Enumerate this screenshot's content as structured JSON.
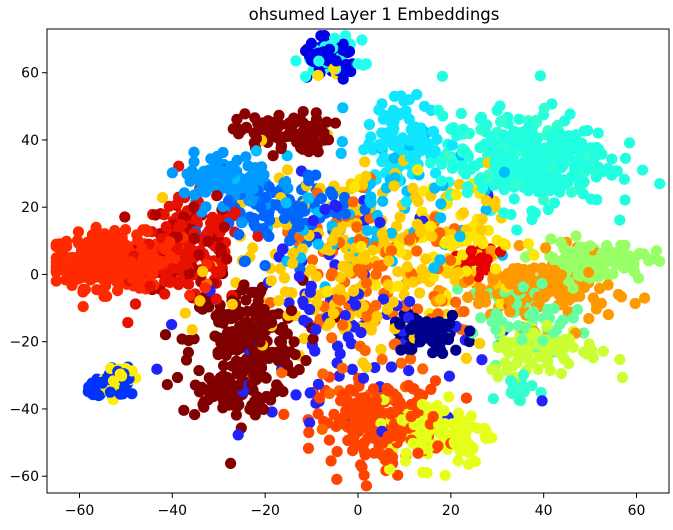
{
  "chart_data": {
    "type": "scatter",
    "title": "ohsumed Layer 1 Embeddings",
    "xlabel": "",
    "ylabel": "",
    "xlim": [
      -67,
      67
    ],
    "ylim": [
      -65,
      73
    ],
    "xticks": [
      -60,
      -40,
      -20,
      0,
      20,
      40,
      60
    ],
    "yticks": [
      -60,
      -40,
      -20,
      0,
      20,
      40,
      60
    ],
    "xtick_labels": [
      "−60",
      "−40",
      "−20",
      "0",
      "20",
      "40",
      "60"
    ],
    "ytick_labels": [
      "−60",
      "−40",
      "−20",
      "0",
      "20",
      "40",
      "60"
    ],
    "grid": false,
    "legend": "none",
    "colormap": "jet",
    "clusters": [
      {
        "color": "#ff2a00",
        "cx": -52,
        "cy": 4,
        "sx": 7,
        "sy": 4,
        "n": 320
      },
      {
        "color": "#e61100",
        "cx": -36,
        "cy": 6,
        "sx": 6,
        "sy": 8,
        "n": 140
      },
      {
        "color": "#b00000",
        "cx": -36,
        "cy": 10,
        "sx": 5,
        "sy": 7,
        "n": 60
      },
      {
        "color": "#800000",
        "cx": -24,
        "cy": -20,
        "sx": 6,
        "sy": 9,
        "n": 190
      },
      {
        "color": "#800000",
        "cx": -28,
        "cy": -36,
        "sx": 5,
        "sy": 3,
        "n": 60
      },
      {
        "color": "#880000",
        "cx": -16,
        "cy": 42,
        "sx": 5,
        "sy": 3,
        "n": 90
      },
      {
        "color": "#ff4400",
        "cx": 5,
        "cy": -44,
        "sx": 7,
        "sy": 6,
        "n": 200
      },
      {
        "color": "#ff6600",
        "cx": 5,
        "cy": -5,
        "sx": 10,
        "sy": 14,
        "n": 120
      },
      {
        "color": "#ff9900",
        "cx": 38,
        "cy": -5,
        "sx": 8,
        "sy": 5,
        "n": 170
      },
      {
        "color": "#ffcc00",
        "cx": 0,
        "cy": 5,
        "sx": 14,
        "sy": 14,
        "n": 220
      },
      {
        "color": "#ffe600",
        "cx": 20,
        "cy": 10,
        "sx": 8,
        "sy": 10,
        "n": 70
      },
      {
        "color": "#e6ff1a",
        "cx": 17,
        "cy": -47,
        "sx": 6,
        "sy": 5,
        "n": 130
      },
      {
        "color": "#ccff33",
        "cx": 40,
        "cy": -22,
        "sx": 6,
        "sy": 4,
        "n": 90
      },
      {
        "color": "#99ff66",
        "cx": 50,
        "cy": 4,
        "sx": 6,
        "sy": 3,
        "n": 110
      },
      {
        "color": "#66ffa0",
        "cx": 36,
        "cy": -12,
        "sx": 6,
        "sy": 5,
        "n": 60
      },
      {
        "color": "#33ffd0",
        "cx": 36,
        "cy": 35,
        "sx": 8,
        "sy": 7,
        "n": 50
      },
      {
        "color": "#22ffe0",
        "cx": 36,
        "cy": 34,
        "sx": 9,
        "sy": 7,
        "n": 300
      },
      {
        "color": "#11e6ff",
        "cx": 10,
        "cy": 40,
        "sx": 4,
        "sy": 6,
        "n": 120
      },
      {
        "color": "#00bfff",
        "cx": 2,
        "cy": 20,
        "sx": 12,
        "sy": 12,
        "n": 80
      },
      {
        "color": "#0099ff",
        "cx": -28,
        "cy": 28,
        "sx": 5,
        "sy": 4,
        "n": 110
      },
      {
        "color": "#0066ff",
        "cx": -15,
        "cy": 18,
        "sx": 7,
        "sy": 6,
        "n": 100
      },
      {
        "color": "#0033ff",
        "cx": -52,
        "cy": -33,
        "sx": 3,
        "sy": 2,
        "n": 40
      },
      {
        "color": "#0000e6",
        "cx": -6,
        "cy": 64,
        "sx": 3,
        "sy": 3,
        "n": 60
      },
      {
        "color": "#00008b",
        "cx": 15,
        "cy": -18,
        "sx": 4,
        "sy": 3,
        "n": 80
      },
      {
        "color": "#2222ff",
        "cx": -5,
        "cy": -10,
        "sx": 14,
        "sy": 16,
        "n": 100
      },
      {
        "color": "#22ffee",
        "cx": -5,
        "cy": 64,
        "sx": 3,
        "sy": 3,
        "n": 30
      },
      {
        "color": "#ffdd00",
        "cx": -5,
        "cy": 62,
        "sx": 2,
        "sy": 2,
        "n": 10
      },
      {
        "color": "#e80000",
        "cx": 26,
        "cy": 4,
        "sx": 2,
        "sy": 2,
        "n": 30
      },
      {
        "color": "#33ffd0",
        "cx": 34,
        "cy": -34,
        "sx": 2,
        "sy": 1.5,
        "n": 25
      },
      {
        "color": "#ffee00",
        "cx": -52,
        "cy": -30,
        "sx": 3,
        "sy": 3,
        "n": 15
      }
    ]
  }
}
